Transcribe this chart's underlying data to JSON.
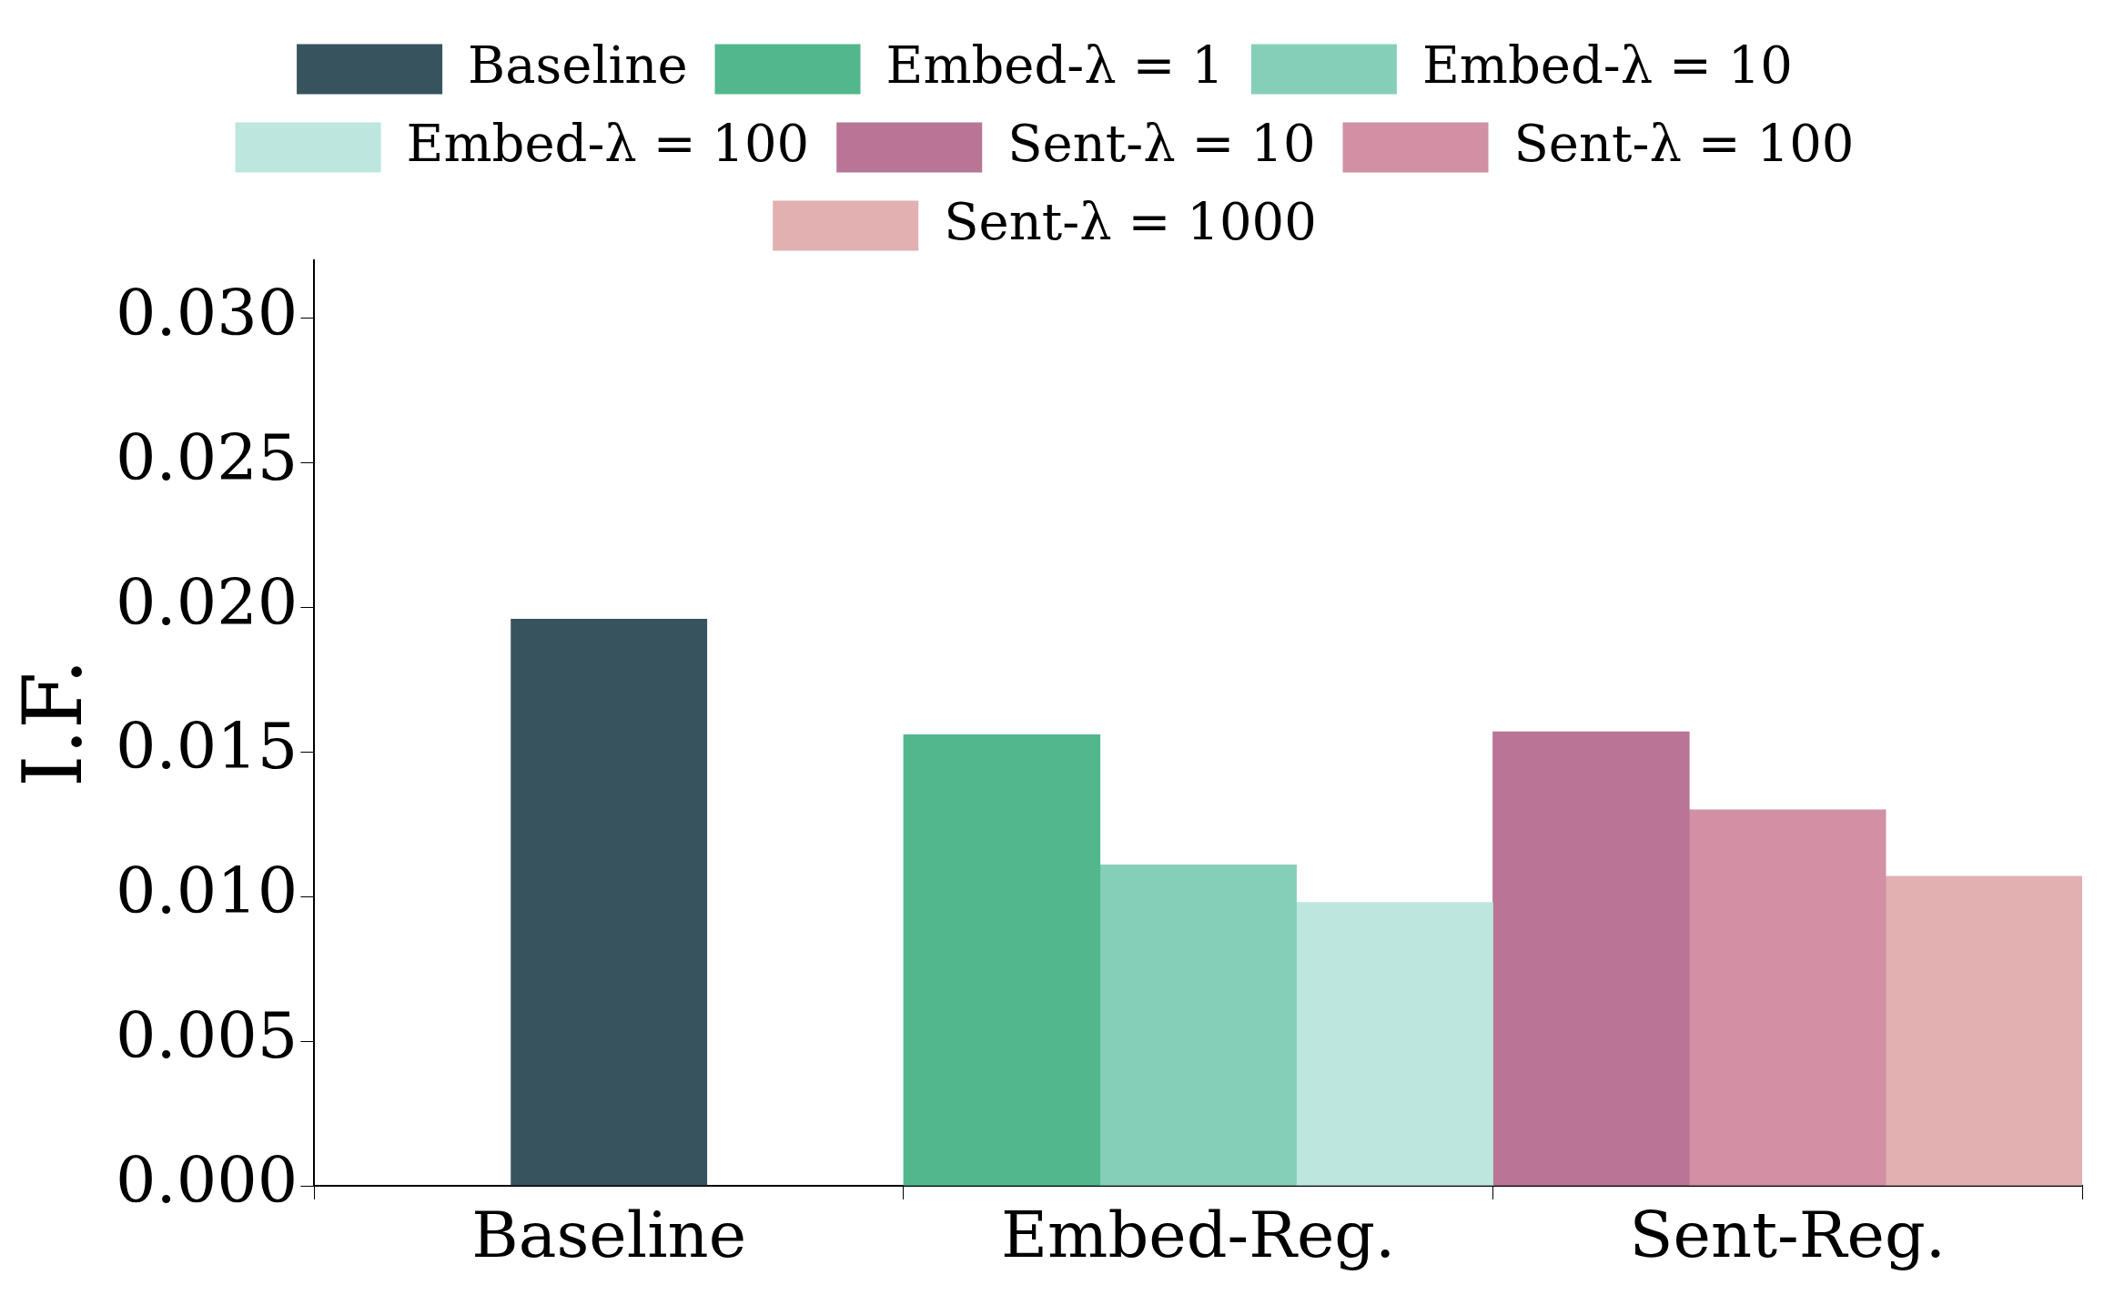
{
  "chart_data": {
    "type": "bar",
    "ylabel": "I.F.",
    "categories": [
      "Baseline",
      "Embed-Reg.",
      "Sent-Reg."
    ],
    "series": [
      {
        "name": "Baseline",
        "color": "#37535e",
        "values": [
          0.0196,
          null,
          null
        ]
      },
      {
        "name": "Embed-λ = 1",
        "color": "#52b78c",
        "values": [
          null,
          0.0156,
          null
        ]
      },
      {
        "name": "Embed-λ = 10",
        "color": "#85cfb9",
        "values": [
          null,
          0.0111,
          null
        ]
      },
      {
        "name": "Embed-λ = 100",
        "color": "#bde6de",
        "values": [
          null,
          0.0098,
          null
        ]
      },
      {
        "name": "Sent-λ = 10",
        "color": "#b87594",
        "values": [
          null,
          null,
          0.0157
        ]
      },
      {
        "name": "Sent-λ = 100",
        "color": "#d190a3",
        "values": [
          null,
          null,
          0.013
        ]
      },
      {
        "name": "Sent-λ = 1000",
        "color": "#e2b0b1",
        "values": [
          null,
          null,
          0.0107
        ]
      }
    ],
    "ylim": [
      0,
      0.032
    ],
    "yticks": [
      {
        "value": 0,
        "label": "0.000"
      },
      {
        "value": 0.005,
        "label": "0.005"
      },
      {
        "value": 0.01,
        "label": "0.010"
      },
      {
        "value": 0.015,
        "label": "0.015"
      },
      {
        "value": 0.02,
        "label": "0.020"
      },
      {
        "value": 0.025,
        "label": "0.025"
      },
      {
        "value": 0.03,
        "label": "0.030"
      }
    ],
    "legend": "top",
    "grid": false
  }
}
